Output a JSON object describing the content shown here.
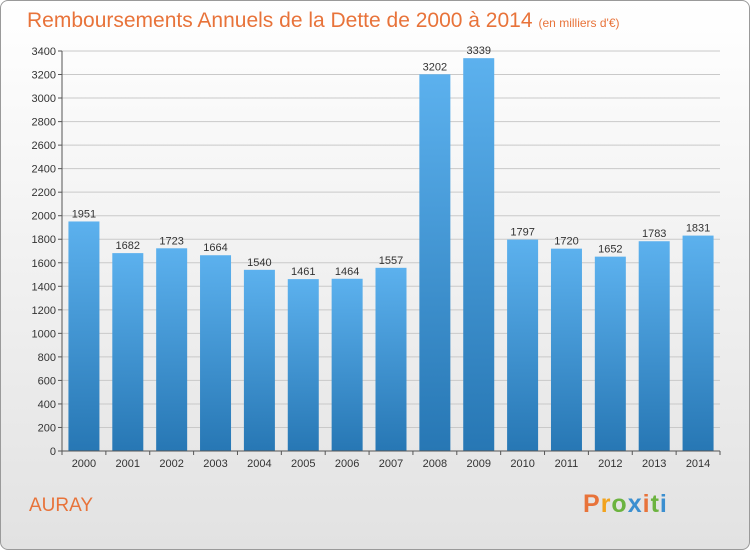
{
  "header": {
    "title": "Remboursements Annuels de la Dette de 2000 à 2014",
    "subtitle": "(en milliers d'€)"
  },
  "footer": {
    "commune": "AURAY",
    "logo_text": "Proxiti"
  },
  "colors": {
    "title": "#e8733a",
    "bar_top": "#5cb1ee",
    "bar_bottom": "#2777b4",
    "logo": [
      "#e8733a",
      "#f2a31d",
      "#6cb33f",
      "#3b8fd0",
      "#e8733a",
      "#6cb33f",
      "#3b8fd0"
    ]
  },
  "chart_data": {
    "type": "bar",
    "title": "Remboursements Annuels de la Dette de 2000 à 2014",
    "subtitle": "(en milliers d'€)",
    "xlabel": "",
    "ylabel": "",
    "categories": [
      "2000",
      "2001",
      "2002",
      "2003",
      "2004",
      "2005",
      "2006",
      "2007",
      "2008",
      "2009",
      "2010",
      "2011",
      "2012",
      "2013",
      "2014"
    ],
    "values": [
      1951,
      1682,
      1723,
      1664,
      1540,
      1461,
      1464,
      1557,
      3202,
      3339,
      1797,
      1720,
      1652,
      1783,
      1831
    ],
    "ylim": [
      0,
      3400
    ],
    "yticks": [
      0,
      200,
      400,
      600,
      800,
      1000,
      1200,
      1400,
      1600,
      1800,
      2000,
      2200,
      2400,
      2600,
      2800,
      3000,
      3200,
      3400
    ],
    "grid": true,
    "legend": "none"
  }
}
